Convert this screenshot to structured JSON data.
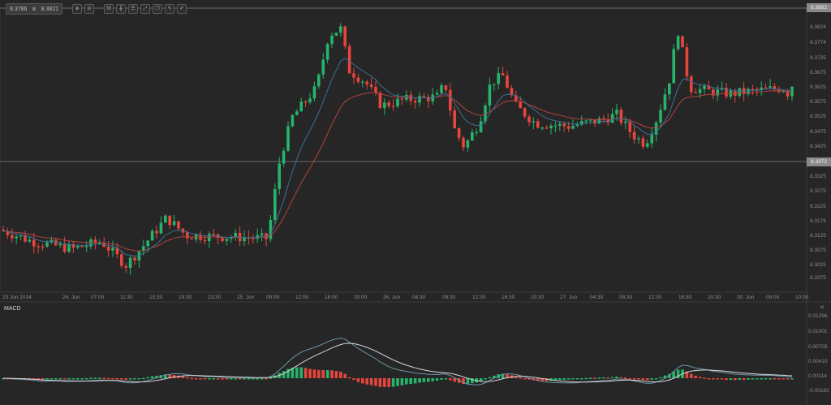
{
  "toolbar": {
    "bid": "8.3786",
    "ask": "8.3821",
    "buttons": [
      {
        "name": "zoom-in-icon",
        "glyph": "⊕"
      },
      {
        "name": "zoom-out-icon",
        "glyph": "⊖"
      },
      {
        "name": "period-30-icon",
        "glyph": "30"
      },
      {
        "name": "chart-type-icon",
        "glyph": "╫"
      },
      {
        "name": "indicators-icon",
        "glyph": "☰"
      },
      {
        "name": "drawing-icon",
        "glyph": "⤢"
      },
      {
        "name": "templates-icon",
        "glyph": "❐"
      },
      {
        "name": "edit-icon",
        "glyph": "✎"
      },
      {
        "name": "pencil-icon",
        "glyph": "✐"
      }
    ]
  },
  "colors": {
    "background": "#262626",
    "up": "#26b36b",
    "down": "#e8453c",
    "ma_fast": "#3e6f93",
    "ma_slow": "#b0433d",
    "macd_line": "#6d95a8",
    "signal_line": "#d8d8d8",
    "grid_line": "#6a6a6a"
  },
  "price_axis": {
    "top_tag": "8.3892",
    "current_tag": "8.3372",
    "labels": [
      "8.3824",
      "8.3774",
      "8.3725",
      "8.3675",
      "8.3625",
      "8.3575",
      "8.3525",
      "8.3475",
      "8.3425",
      "8.3325",
      "8.3275",
      "8.3225",
      "8.3175",
      "8.3125",
      "8.3075",
      "8.3025",
      "8.2975"
    ]
  },
  "time_axis": {
    "labels": [
      "23 Jun 2014",
      "24. Jun",
      "07:00",
      "11:30",
      "15:30",
      "19:30",
      "23:30",
      "25. Jun",
      "08:00",
      "12:00",
      "16:00",
      "20:00",
      "26. Jun",
      "04:30",
      "08:30",
      "12:30",
      "16:30",
      "20:30",
      "27. Jun",
      "04:30",
      "08:30",
      "12:30",
      "16:30",
      "20:30",
      "30. Jun",
      "08:00",
      "10:00"
    ]
  },
  "macd": {
    "title": "MACD",
    "close": "✕",
    "labels": [
      "0.01296",
      "0.01001",
      "0.00705",
      "0.00410",
      "0.00114",
      "-0.00182"
    ]
  },
  "chart_data": [
    {
      "type": "candlestick",
      "title": "",
      "symbol_bid": 8.3786,
      "symbol_ask": 8.3821,
      "ylim": [
        8.295,
        8.3892
      ],
      "current_price_line": 8.3372,
      "x": [
        "23 Jun 2014",
        "24. Jun",
        "07:00",
        "11:30",
        "15:30",
        "19:30",
        "23:30",
        "25. Jun",
        "08:00",
        "12:00",
        "16:00",
        "20:00",
        "26. Jun",
        "04:30",
        "08:30",
        "12:30",
        "16:30",
        "20:30",
        "27. Jun",
        "04:30",
        "08:30",
        "12:30",
        "16:30",
        "20:30",
        "30. Jun",
        "08:00",
        "10:00"
      ],
      "ohlc_sample": [
        {
          "t": "23 Jun 2014",
          "o": 8.314,
          "h": 8.316,
          "l": 8.3085,
          "c": 8.311
        },
        {
          "t": "24. Jun",
          "o": 8.31,
          "h": 8.311,
          "l": 8.306,
          "c": 8.308
        },
        {
          "t": "07:00",
          "o": 8.307,
          "h": 8.3095,
          "l": 8.305,
          "c": 8.3085
        },
        {
          "t": "11:30",
          "o": 8.31,
          "h": 8.321,
          "l": 8.298,
          "c": 8.302
        },
        {
          "t": "15:30",
          "o": 8.309,
          "h": 8.322,
          "l": 8.305,
          "c": 8.318
        },
        {
          "t": "19:30",
          "o": 8.314,
          "h": 8.317,
          "l": 8.31,
          "c": 8.312
        },
        {
          "t": "23:30",
          "o": 8.312,
          "h": 8.3135,
          "l": 8.31,
          "c": 8.3115
        },
        {
          "t": "25. Jun",
          "o": 8.311,
          "h": 8.313,
          "l": 8.3095,
          "c": 8.3105
        },
        {
          "t": "08:00",
          "o": 8.315,
          "h": 8.342,
          "l": 8.314,
          "c": 8.34
        },
        {
          "t": "12:00",
          "o": 8.35,
          "h": 8.362,
          "l": 8.343,
          "c": 8.36
        },
        {
          "t": "16:00",
          "o": 8.376,
          "h": 8.385,
          "l": 8.366,
          "c": 8.382
        },
        {
          "t": "20:00",
          "o": 8.365,
          "h": 8.368,
          "l": 8.356,
          "c": 8.36
        },
        {
          "t": "26. Jun",
          "o": 8.359,
          "h": 8.362,
          "l": 8.356,
          "c": 8.36
        },
        {
          "t": "04:30",
          "o": 8.36,
          "h": 8.3615,
          "l": 8.358,
          "c": 8.3605
        },
        {
          "t": "08:30",
          "o": 8.362,
          "h": 8.364,
          "l": 8.339,
          "c": 8.343
        },
        {
          "t": "12:30",
          "o": 8.344,
          "h": 8.37,
          "l": 8.34,
          "c": 8.364
        },
        {
          "t": "16:30",
          "o": 8.36,
          "h": 8.366,
          "l": 8.348,
          "c": 8.352
        },
        {
          "t": "20:30",
          "o": 8.35,
          "h": 8.356,
          "l": 8.346,
          "c": 8.349
        },
        {
          "t": "27. Jun",
          "o": 8.348,
          "h": 8.352,
          "l": 8.346,
          "c": 8.35
        },
        {
          "t": "04:30",
          "o": 8.349,
          "h": 8.353,
          "l": 8.347,
          "c": 8.351
        },
        {
          "t": "08:30",
          "o": 8.352,
          "h": 8.356,
          "l": 8.348,
          "c": 8.354
        },
        {
          "t": "12:30",
          "o": 8.35,
          "h": 8.356,
          "l": 8.334,
          "c": 8.345
        },
        {
          "t": "16:30",
          "o": 8.38,
          "h": 8.385,
          "l": 8.356,
          "c": 8.36
        },
        {
          "t": "20:30",
          "o": 8.361,
          "h": 8.365,
          "l": 8.355,
          "c": 8.359
        },
        {
          "t": "30. Jun",
          "o": 8.36,
          "h": 8.362,
          "l": 8.359,
          "c": 8.361
        },
        {
          "t": "08:00",
          "o": 8.361,
          "h": 8.364,
          "l": 8.358,
          "c": 8.362
        },
        {
          "t": "10:00",
          "o": 8.358,
          "h": 8.379,
          "l": 8.357,
          "c": 8.3786
        }
      ],
      "series": [
        {
          "name": "MA fast",
          "color": "#3e6f93"
        },
        {
          "name": "MA slow",
          "color": "#b0433d"
        }
      ]
    },
    {
      "type": "bar",
      "title": "MACD",
      "ylim": [
        -0.0025,
        0.0135
      ],
      "yticks": [
        0.01296,
        0.01001,
        0.00705,
        0.0041,
        0.00114,
        -0.00182
      ],
      "series": [
        {
          "name": "MACD",
          "color": "#6d95a8"
        },
        {
          "name": "Signal",
          "color": "#d8d8d8"
        },
        {
          "name": "Histogram",
          "colors": [
            "#26b36b",
            "#e8453c"
          ]
        }
      ],
      "peaks": [
        {
          "t": "16:00 25 Jun",
          "macd": 0.0133,
          "signal": 0.013
        },
        {
          "t": "16:30 27 Jun",
          "macd": 0.005,
          "signal": 0.004
        }
      ]
    }
  ]
}
